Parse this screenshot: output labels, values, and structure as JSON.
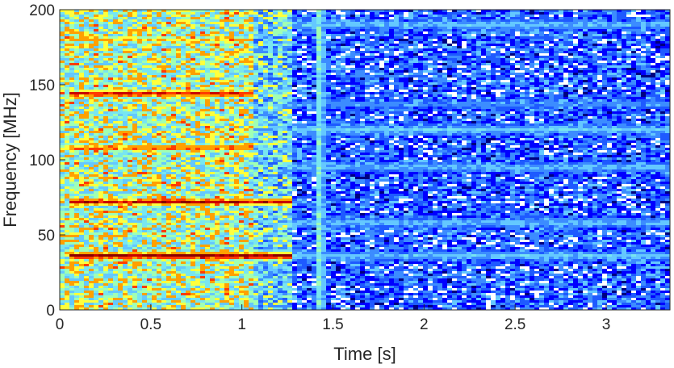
{
  "chart_data": {
    "type": "heatmap",
    "xlabel": "Time [s]",
    "ylabel": "Frequency [MHz]",
    "xlim": [
      0,
      3.35
    ],
    "ylim": [
      0,
      200
    ],
    "x_ticks": [
      0,
      0.5,
      1,
      1.5,
      2,
      2.5,
      3
    ],
    "x_tick_labels": [
      "0",
      "0.5",
      "1",
      "1.5",
      "2",
      "2.5",
      "3"
    ],
    "y_ticks": [
      0,
      50,
      100,
      150,
      200
    ],
    "y_tick_labels": [
      "0",
      "50",
      "100",
      "150",
      "200"
    ],
    "colormap": [
      "#00007f",
      "#0000ff",
      "#1e5aff",
      "#3c8cff",
      "#64c8ff",
      "#78e6f0",
      "#a0ffb4",
      "#ffff3c",
      "#ffa000",
      "#ff3c00",
      "#c80000",
      "#8b0000"
    ],
    "background_color": "#ffffff",
    "regions": [
      {
        "t_start": 0,
        "t_end": 1.07,
        "level": 0.55
      },
      {
        "t_start": 1.07,
        "t_end": 1.27,
        "level": 0.42
      },
      {
        "t_start": 1.27,
        "t_end": 3.35,
        "level": 0.2
      }
    ],
    "bands": [
      {
        "freq_mhz": 36,
        "t_start": 0.05,
        "t_end": 1.27,
        "level": 1.0
      },
      {
        "freq_mhz": 72,
        "t_start": 0.05,
        "t_end": 1.27,
        "level": 0.92
      },
      {
        "freq_mhz": 108,
        "t_start": 0.05,
        "t_end": 1.07,
        "level": 0.82
      },
      {
        "freq_mhz": 144,
        "t_start": 0.05,
        "t_end": 1.07,
        "level": 0.9
      },
      {
        "freq_mhz": 180,
        "t_start": 0.05,
        "t_end": 1.07,
        "level": 0.68
      },
      {
        "freq_mhz": 36,
        "t_start": 1.27,
        "t_end": 3.35,
        "level": 0.4
      },
      {
        "freq_mhz": 58,
        "t_start": 1.27,
        "t_end": 3.35,
        "level": 0.4
      },
      {
        "freq_mhz": 95,
        "t_start": 1.27,
        "t_end": 3.35,
        "level": 0.38
      },
      {
        "freq_mhz": 120,
        "t_start": 1.27,
        "t_end": 3.35,
        "level": 0.42
      },
      {
        "freq_mhz": 137,
        "t_start": 1.27,
        "t_end": 3.35,
        "level": 0.32
      },
      {
        "freq_mhz": 190,
        "t_start": 1.27,
        "t_end": 3.35,
        "level": 0.4
      }
    ],
    "vertical_stripe": {
      "t_center": 1.43,
      "width_s": 0.05,
      "level": 0.55
    }
  }
}
